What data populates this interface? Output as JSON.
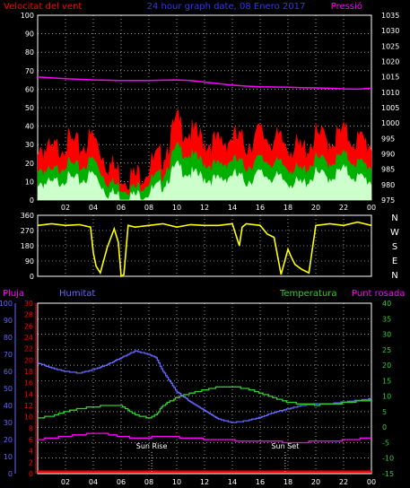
{
  "header": {
    "wind_label": "Velocitat del vent",
    "title": "24 hour graph date, 08 Enero 2017",
    "pressure_label": "Pressió"
  },
  "colors": {
    "wind_max": "#ff0000",
    "wind_avg": "#00b000",
    "wind_min": "#ccffcc",
    "pressure": "#ff00ff",
    "direction": "#ffff00",
    "rain": "#ff0000",
    "humidity": "#6666ff",
    "temperature": "#33cc33",
    "dewpoint": "#ff00ff",
    "title": "#3333ff"
  },
  "chart_data": [
    {
      "type": "line",
      "name": "wind_pressure",
      "x_ticks": [
        "02",
        "04",
        "06",
        "08",
        "10",
        "12",
        "14",
        "16",
        "18",
        "20",
        "22",
        "00"
      ],
      "y_left_ticks": [
        0,
        10,
        20,
        30,
        40,
        50,
        60,
        70,
        80,
        90,
        100
      ],
      "y_right_ticks": [
        975,
        980,
        985,
        990,
        995,
        1000,
        1005,
        1010,
        1015,
        1020,
        1025,
        1030,
        1035
      ],
      "ylim_left": [
        0,
        100
      ],
      "ylim_right": [
        975,
        1035
      ],
      "series": [
        {
          "key": "wind_max",
          "hours": [
            0,
            1,
            2,
            3,
            4,
            5,
            6,
            7,
            8,
            9,
            10,
            11,
            12,
            13,
            14,
            15,
            16,
            17,
            18,
            19,
            20,
            21,
            22,
            23,
            24
          ],
          "values": [
            30,
            25,
            32,
            28,
            34,
            20,
            14,
            12,
            18,
            24,
            42,
            36,
            32,
            30,
            34,
            30,
            36,
            32,
            30,
            26,
            34,
            32,
            36,
            32,
            30
          ]
        },
        {
          "key": "wind_avg",
          "hours": [
            0,
            1,
            2,
            3,
            4,
            5,
            6,
            7,
            8,
            9,
            10,
            11,
            12,
            13,
            14,
            15,
            16,
            17,
            18,
            19,
            20,
            21,
            22,
            23,
            24
          ],
          "values": [
            18,
            14,
            20,
            17,
            22,
            10,
            7,
            6,
            10,
            14,
            28,
            24,
            20,
            18,
            22,
            18,
            22,
            20,
            18,
            15,
            22,
            20,
            24,
            20,
            18
          ]
        },
        {
          "key": "wind_min",
          "hours": [
            0,
            1,
            2,
            3,
            4,
            5,
            6,
            7,
            8,
            9,
            10,
            11,
            12,
            13,
            14,
            15,
            16,
            17,
            18,
            19,
            20,
            21,
            22,
            23,
            24
          ],
          "values": [
            10,
            8,
            12,
            10,
            14,
            4,
            2,
            2,
            4,
            8,
            18,
            14,
            12,
            10,
            14,
            10,
            14,
            12,
            10,
            8,
            14,
            12,
            16,
            12,
            10
          ]
        },
        {
          "key": "pressure",
          "hours": [
            0,
            1,
            2,
            3,
            4,
            5,
            6,
            7,
            8,
            9,
            10,
            11,
            12,
            13,
            14,
            15,
            16,
            17,
            18,
            19,
            20,
            21,
            22,
            23,
            24
          ],
          "values": [
            1015,
            1014.7,
            1014.4,
            1014.2,
            1014.0,
            1013.9,
            1013.8,
            1013.8,
            1013.8,
            1013.9,
            1014.0,
            1013.8,
            1013.3,
            1012.8,
            1012.3,
            1012.0,
            1011.8,
            1011.7,
            1011.6,
            1011.5,
            1011.4,
            1011.3,
            1011.1,
            1011.0,
            1011.3
          ]
        }
      ]
    },
    {
      "type": "line",
      "name": "wind_direction",
      "y_ticks": [
        0,
        90,
        180,
        270,
        360
      ],
      "ylim": [
        0,
        360
      ],
      "compass": [
        "N",
        "W",
        "S",
        "E",
        "N"
      ],
      "series": [
        {
          "key": "direction",
          "hours": [
            0,
            1,
            2,
            3,
            3.8,
            4.0,
            4.2,
            4.5,
            5,
            5.5,
            5.8,
            6.0,
            6.2,
            6.5,
            7,
            8,
            9,
            10,
            11,
            12,
            13,
            14,
            14.5,
            14.7,
            15,
            16,
            16.5,
            17,
            17.5,
            18,
            18.2,
            18.5,
            19,
            19.5,
            20,
            20.5,
            21,
            22,
            23,
            24
          ],
          "values": [
            300,
            310,
            300,
            305,
            290,
            140,
            60,
            20,
            170,
            280,
            200,
            0,
            10,
            300,
            290,
            300,
            310,
            290,
            305,
            300,
            300,
            310,
            180,
            290,
            310,
            300,
            250,
            230,
            10,
            160,
            120,
            70,
            40,
            20,
            300,
            305,
            310,
            300,
            320,
            300
          ]
        }
      ]
    },
    {
      "type": "line",
      "name": "temp_humidity",
      "x_ticks": [
        "02",
        "04",
        "06",
        "08",
        "10",
        "12",
        "14",
        "16",
        "18",
        "20",
        "22",
        "00"
      ],
      "humidity_ticks": [
        0,
        10,
        20,
        30,
        40,
        50,
        60,
        70,
        80,
        90,
        100
      ],
      "rain_ticks": [
        0,
        2,
        4,
        6,
        8,
        10,
        12,
        14,
        16,
        18,
        20,
        22,
        24,
        26,
        28,
        30
      ],
      "temp_ticks": [
        -15,
        -10,
        -5,
        0,
        5,
        10,
        15,
        20,
        25,
        30,
        35,
        40
      ],
      "humidity_ylim": [
        0,
        100
      ],
      "temp_ylim": [
        -15,
        40
      ],
      "series": [
        {
          "key": "humidity",
          "hours": [
            0,
            1,
            2,
            3,
            4,
            5,
            6,
            7,
            8,
            8.5,
            9,
            10,
            11,
            12,
            13,
            14,
            15,
            16,
            17,
            18,
            19,
            20,
            21,
            22,
            23,
            24
          ],
          "values": [
            65,
            62,
            60,
            59,
            61,
            64,
            68,
            72,
            70,
            68,
            60,
            48,
            42,
            37,
            32,
            30,
            31,
            33,
            36,
            38,
            40,
            41,
            41,
            42,
            43,
            44
          ]
        },
        {
          "key": "temperature",
          "hours": [
            0,
            1,
            2,
            3,
            4,
            5,
            6,
            7,
            8,
            8.5,
            9,
            10,
            11,
            12,
            13,
            14,
            15,
            16,
            17,
            18,
            19,
            20,
            21,
            22,
            23,
            24
          ],
          "values": [
            3,
            3.5,
            5,
            6,
            6.5,
            7,
            7,
            4,
            3,
            4,
            7,
            9.5,
            11,
            12,
            13,
            13,
            12.5,
            11,
            9.5,
            8,
            7.5,
            7.2,
            7.4,
            7.8,
            8.3,
            8.8
          ]
        },
        {
          "key": "dewpoint",
          "hours": [
            0,
            1,
            2,
            3,
            4,
            5,
            6,
            7,
            8,
            9,
            10,
            11,
            12,
            13,
            14,
            15,
            16,
            17,
            18,
            19,
            20,
            21,
            22,
            23,
            24
          ],
          "values": [
            -4,
            -3.5,
            -3,
            -2.5,
            -2,
            -2.2,
            -3,
            -3.5,
            -3.3,
            -3,
            -3.2,
            -3.5,
            -3.8,
            -4,
            -4.2,
            -4.5,
            -4.6,
            -4.7,
            -4.8,
            -4.8,
            -4.7,
            -4.5,
            -4.2,
            -3.8,
            -3.4
          ]
        },
        {
          "key": "rain",
          "hours": [
            0,
            24
          ],
          "values": [
            0,
            0
          ]
        }
      ],
      "annotations": [
        {
          "label": "Sun Rise",
          "hour": 8.2
        },
        {
          "label": "Sun Set",
          "hour": 17.8
        }
      ],
      "legend": {
        "rain": "Pluja",
        "humidity": "Humitat",
        "temperature": "Temperatura",
        "dewpoint": "Punt rosada"
      }
    }
  ]
}
